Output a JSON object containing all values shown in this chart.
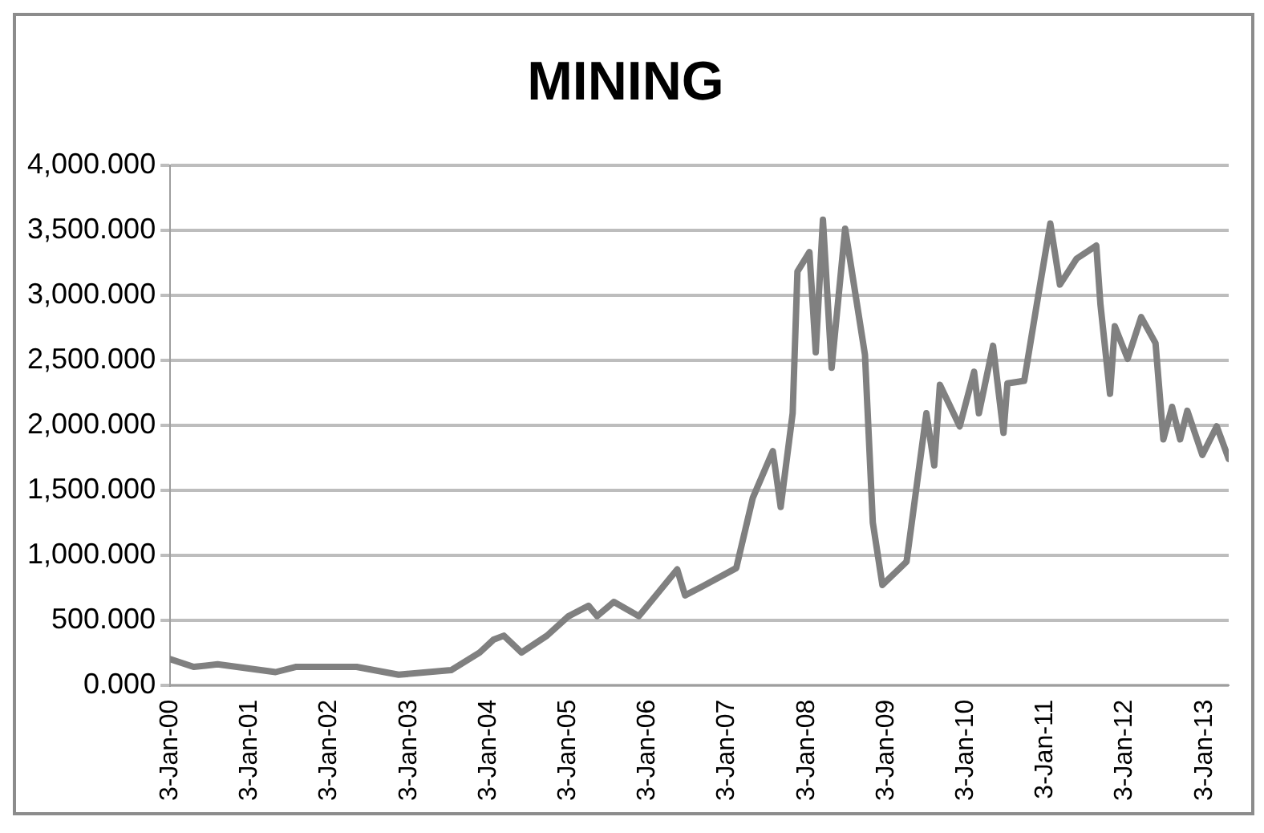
{
  "chart_data": {
    "type": "line",
    "title": "MINING",
    "x": [
      "2000-01-03",
      "2000-04-20",
      "2000-08-08",
      "2001-05-01",
      "2001-08-01",
      "2002-05-08",
      "2002-11-17",
      "2003-07-16",
      "2003-11-24",
      "2004-01-27",
      "2004-03-14",
      "2004-06-03",
      "2004-09-28",
      "2005-01-05",
      "2005-04-07",
      "2005-05-16",
      "2005-08-01",
      "2005-11-24",
      "2006-05-19",
      "2006-06-24",
      "2006-09-13",
      "2007-02-14",
      "2007-05-01",
      "2007-08-01",
      "2007-09-06",
      "2007-10-31",
      "2007-11-22",
      "2008-01-16",
      "2008-02-14",
      "2008-03-18",
      "2008-04-27",
      "2008-06-28",
      "2008-09-27",
      "2008-11-02",
      "2008-12-16",
      "2009-04-06",
      "2009-07-06",
      "2009-08-11",
      "2009-09-06",
      "2009-12-06",
      "2010-02-10",
      "2010-03-04",
      "2010-05-08",
      "2010-06-25",
      "2010-07-13",
      "2010-09-28",
      "2010-11-28",
      "2011-01-26",
      "2011-03-11",
      "2011-05-27",
      "2011-08-25",
      "2011-09-13",
      "2011-10-27",
      "2011-11-18",
      "2012-01-16",
      "2012-03-18",
      "2012-05-23",
      "2012-06-28",
      "2012-08-07",
      "2012-09-13",
      "2012-10-16",
      "2012-12-24",
      "2013-02-28",
      "2013-04-24"
    ],
    "series": [
      {
        "color": "#808080",
        "values": [
          200,
          140,
          160,
          100,
          140,
          140,
          80,
          115,
          250,
          350,
          380,
          250,
          380,
          530,
          610,
          530,
          640,
          530,
          890,
          690,
          760,
          900,
          1440,
          1800,
          1370,
          2090,
          3180,
          3330,
          2560,
          3580,
          2440,
          3510,
          2540,
          1250,
          770,
          950,
          2090,
          1690,
          2310,
          1990,
          2410,
          2090,
          2610,
          1940,
          2320,
          2340,
          2960,
          3550,
          3080,
          3280,
          3380,
          2930,
          2240,
          2760,
          2510,
          2830,
          2630,
          1890,
          2140,
          1890,
          2110,
          1770,
          1990,
          1740
        ]
      }
    ],
    "xlim": [
      "2000-01-03",
      "2013-04-24"
    ],
    "xticks": [
      {
        "value": "2000-01-03",
        "label": "3-Jan-00"
      },
      {
        "value": "2001-01-03",
        "label": "3-Jan-01"
      },
      {
        "value": "2002-01-03",
        "label": "3-Jan-02"
      },
      {
        "value": "2003-01-03",
        "label": "3-Jan-03"
      },
      {
        "value": "2004-01-03",
        "label": "3-Jan-04"
      },
      {
        "value": "2005-01-03",
        "label": "3-Jan-05"
      },
      {
        "value": "2006-01-03",
        "label": "3-Jan-06"
      },
      {
        "value": "2007-01-03",
        "label": "3-Jan-07"
      },
      {
        "value": "2008-01-03",
        "label": "3-Jan-08"
      },
      {
        "value": "2009-01-03",
        "label": "3-Jan-09"
      },
      {
        "value": "2010-01-03",
        "label": "3-Jan-10"
      },
      {
        "value": "2011-01-03",
        "label": "3-Jan-11"
      },
      {
        "value": "2012-01-03",
        "label": "3-Jan-12"
      },
      {
        "value": "2013-01-03",
        "label": "3-Jan-13"
      }
    ],
    "ylim": [
      0,
      4000
    ],
    "yticks": [
      {
        "value": 0,
        "label": "0.000"
      },
      {
        "value": 500,
        "label": "500.000"
      },
      {
        "value": 1000,
        "label": "1,000.000"
      },
      {
        "value": 1500,
        "label": "1,500.000"
      },
      {
        "value": 2000,
        "label": "2,000.000"
      },
      {
        "value": 2500,
        "label": "2,500.000"
      },
      {
        "value": 3000,
        "label": "3,000.000"
      },
      {
        "value": 3500,
        "label": "3,500.000"
      },
      {
        "value": 4000,
        "label": "4,000.000"
      }
    ],
    "grid": "y",
    "legend": false,
    "marker": "none",
    "line_style": "solid"
  }
}
